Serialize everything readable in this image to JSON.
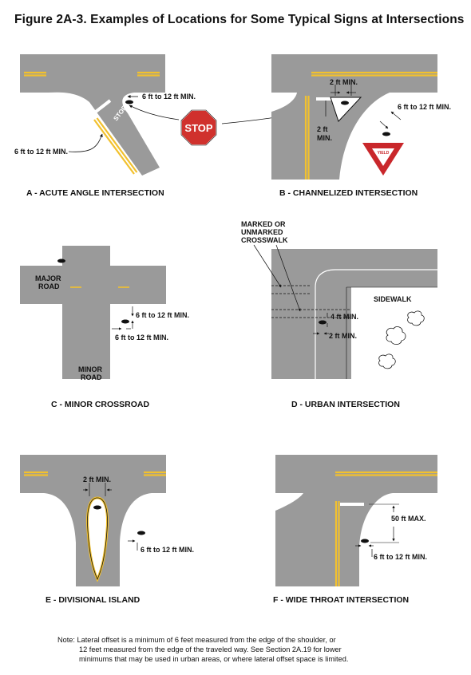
{
  "figure_title": "Figure 2A-3.  Examples of Locations for Some Typical Signs at Intersections",
  "panels": {
    "a": {
      "caption": "A - ACUTE ANGLE INTERSECTION",
      "offset_top": "6 ft to 12 ft MIN.",
      "offset_left": "6 ft to 12 ft MIN.",
      "pavement_word": "STOP"
    },
    "b": {
      "caption": "B - CHANNELIZED INTERSECTION",
      "dim_top": "2 ft MIN.",
      "dim_side_1": "2 ft",
      "dim_side_2": "MIN.",
      "offset": "6 ft to 12 ft MIN."
    },
    "c": {
      "caption": "C - MINOR CROSSROAD",
      "major_1": "MAJOR",
      "major_2": "ROAD",
      "minor_1": "MINOR",
      "minor_2": "ROAD",
      "offset_1": "6 ft to 12 ft MIN.",
      "offset_2": "6 ft to 12 ft MIN."
    },
    "d": {
      "caption": "D - URBAN INTERSECTION",
      "crosswalk_1": "MARKED OR",
      "crosswalk_2": "UNMARKED",
      "crosswalk_3": "CROSSWALK",
      "sidewalk": "SIDEWALK",
      "dim_1": "4 ft MIN.",
      "dim_2": "2 ft MIN."
    },
    "e": {
      "caption": "E - DIVISIONAL ISLAND",
      "dim_top": "2 ft MIN.",
      "offset": "6 ft to 12 ft MIN."
    },
    "f": {
      "caption": "F - WIDE THROAT INTERSECTION",
      "dim_max": "50 ft MAX.",
      "offset": "6 ft to 12 ft MIN."
    }
  },
  "signs": {
    "stop": "STOP",
    "yield": "YIELD"
  },
  "note": {
    "line1": "Note:  Lateral offset is a minimum of 6 feet measured from the edge of the shoulder, or",
    "line2": "12 feet measured from the edge of the traveled way.  See Section 2A.19 for lower",
    "line3": "minimums that may be used in urban areas, or where lateral offset space is limited."
  },
  "colors": {
    "road": "#9a9a9a",
    "line": "#f2c12e",
    "stop_red": "#d0312d",
    "yield_red": "#c9272b"
  }
}
